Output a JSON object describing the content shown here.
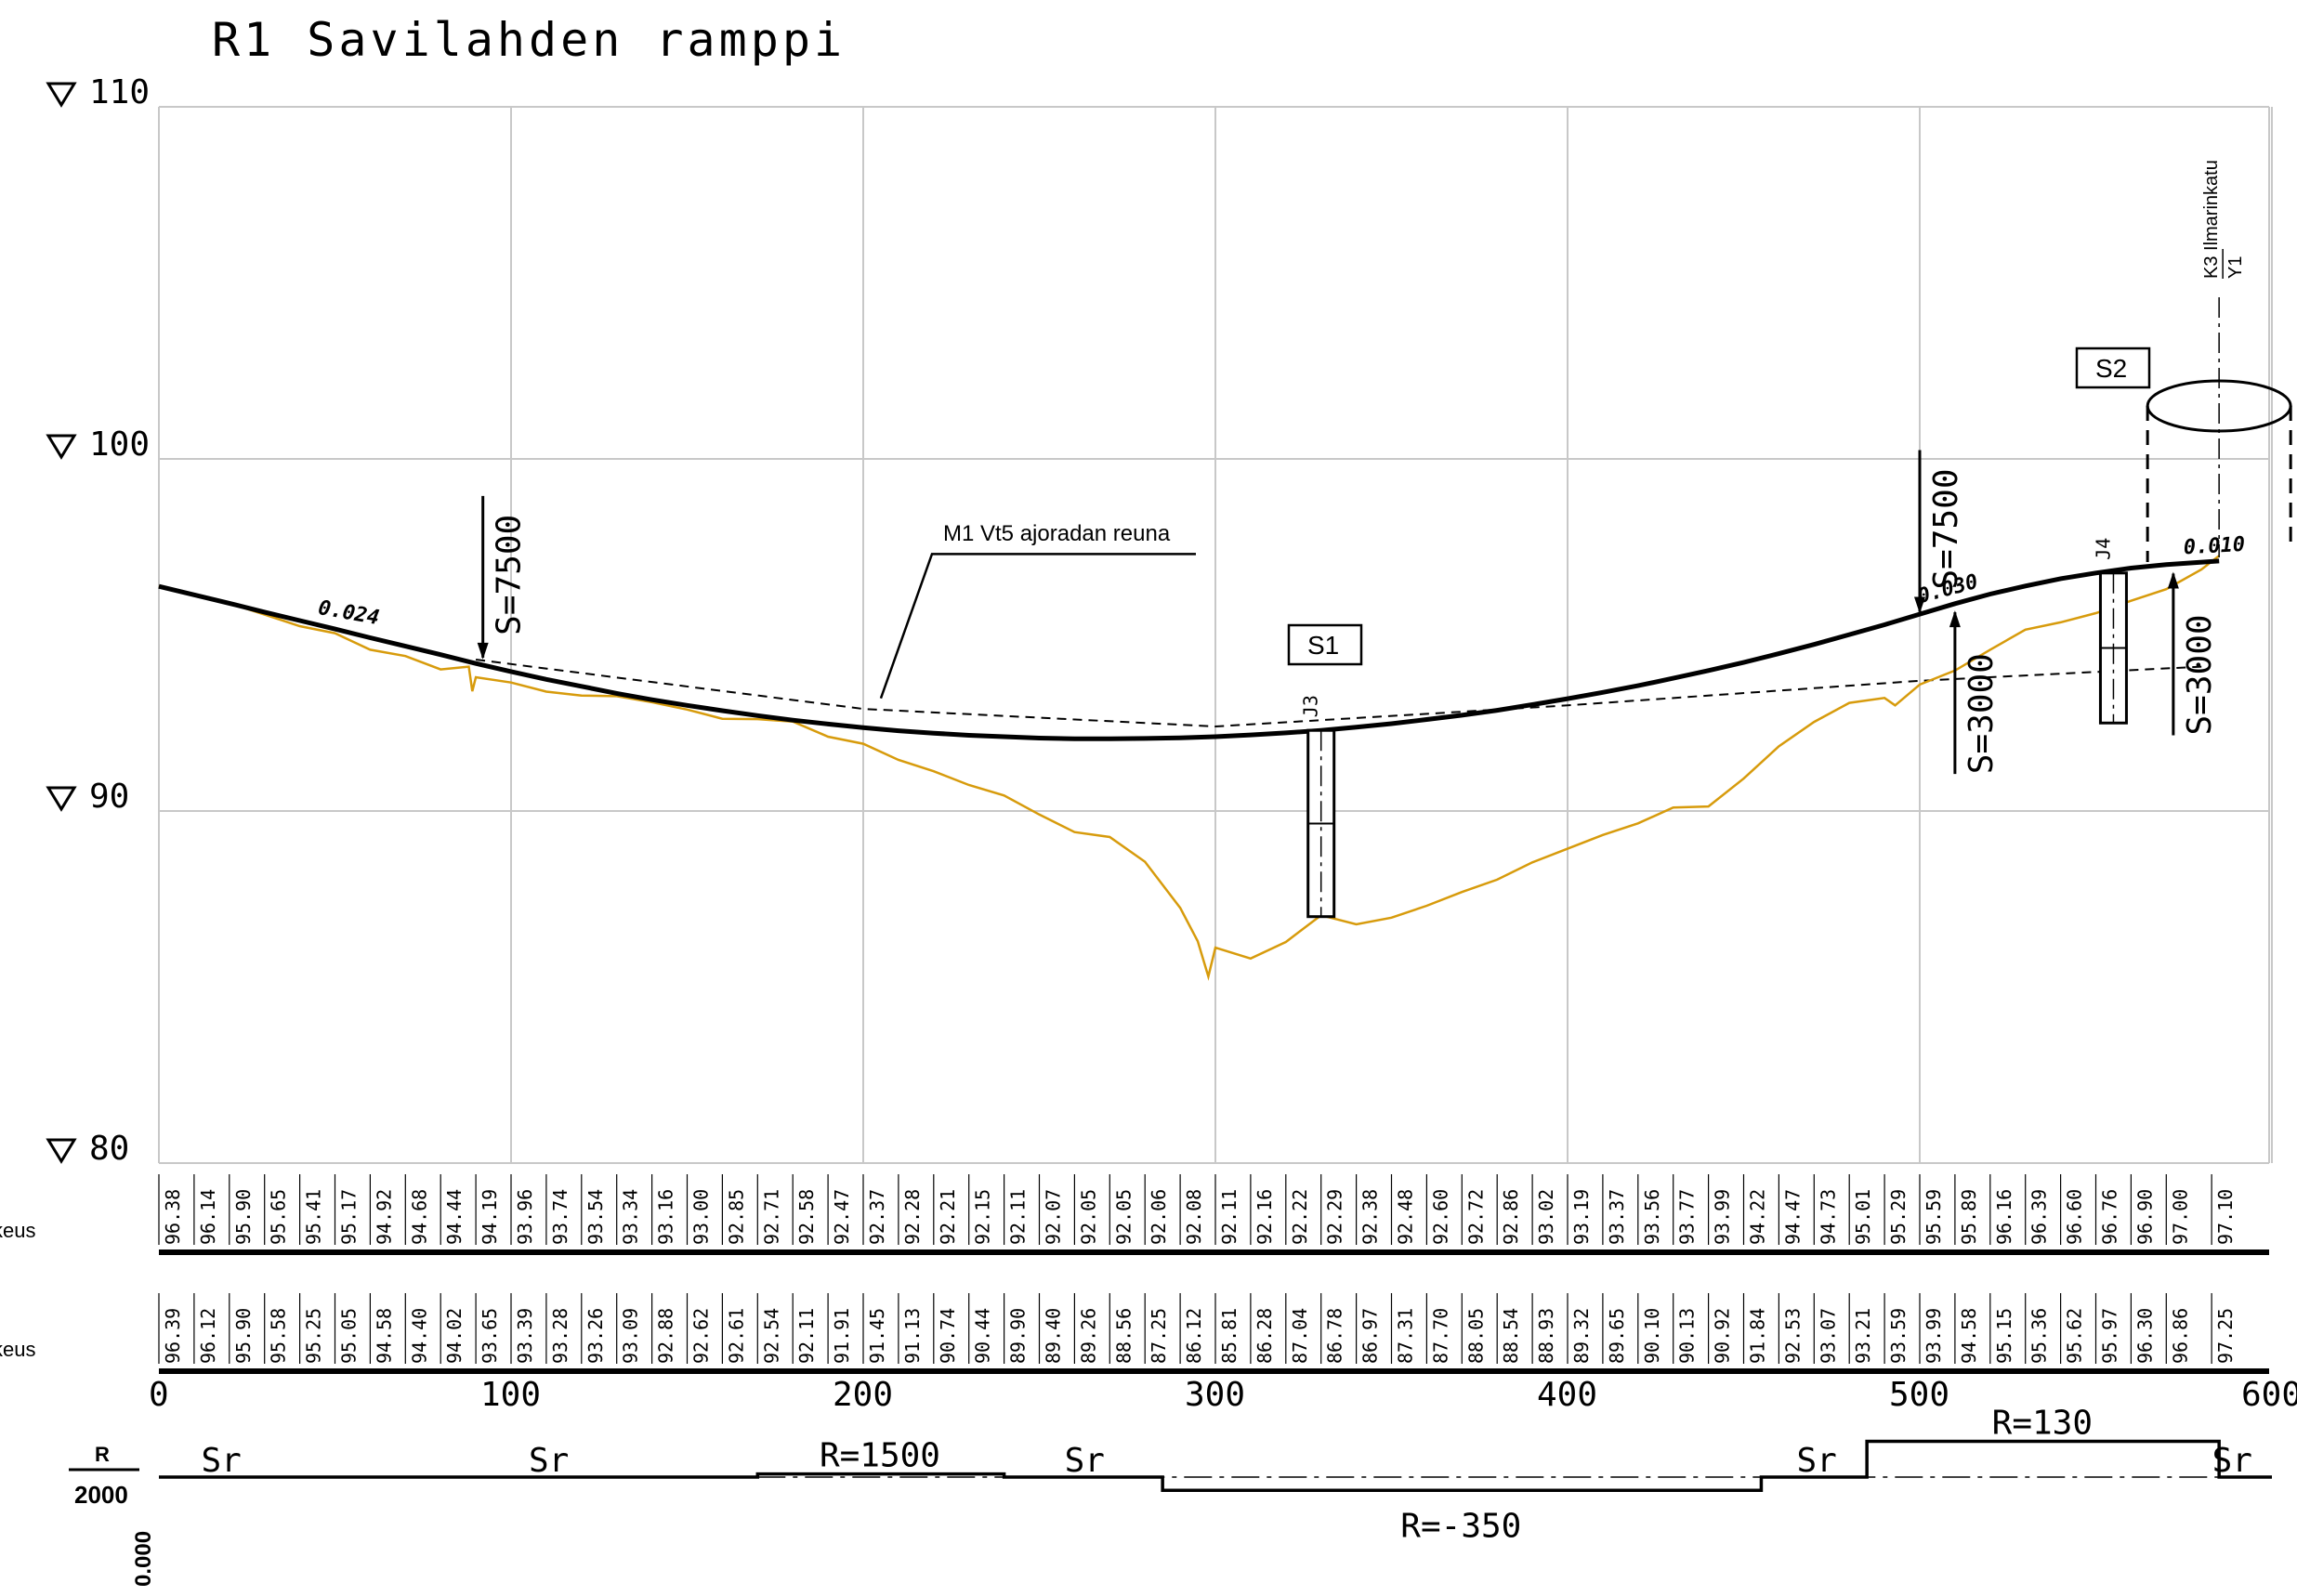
{
  "title": "R1 Savilahden ramppi",
  "elevation_axis": {
    "levels": [
      80,
      90,
      100,
      110
    ],
    "marker": "∇"
  },
  "station_axis": {
    "ticks": [
      "0",
      "100",
      "200",
      "300",
      "400",
      "500",
      "600"
    ],
    "min": 0,
    "max": 600
  },
  "design_line": {
    "points": [
      [
        0,
        96.38
      ],
      [
        10,
        96.14
      ],
      [
        20,
        95.9
      ],
      [
        30,
        95.65
      ],
      [
        40,
        95.41
      ],
      [
        50,
        95.17
      ],
      [
        60,
        94.92
      ],
      [
        70,
        94.68
      ],
      [
        80,
        94.44
      ],
      [
        90,
        94.19
      ],
      [
        100,
        93.96
      ],
      [
        110,
        93.74
      ],
      [
        120,
        93.54
      ],
      [
        130,
        93.34
      ],
      [
        140,
        93.16
      ],
      [
        150,
        93.0
      ],
      [
        160,
        92.85
      ],
      [
        170,
        92.71
      ],
      [
        180,
        92.58
      ],
      [
        190,
        92.47
      ],
      [
        200,
        92.37
      ],
      [
        210,
        92.28
      ],
      [
        220,
        92.21
      ],
      [
        230,
        92.15
      ],
      [
        240,
        92.11
      ],
      [
        250,
        92.07
      ],
      [
        260,
        92.05
      ],
      [
        270,
        92.05
      ],
      [
        280,
        92.06
      ],
      [
        290,
        92.08
      ],
      [
        300,
        92.11
      ],
      [
        310,
        92.16
      ],
      [
        320,
        92.22
      ],
      [
        330,
        92.29
      ],
      [
        340,
        92.38
      ],
      [
        350,
        92.48
      ],
      [
        360,
        92.6
      ],
      [
        370,
        92.72
      ],
      [
        380,
        92.86
      ],
      [
        390,
        93.02
      ],
      [
        400,
        93.19
      ],
      [
        410,
        93.37
      ],
      [
        420,
        93.56
      ],
      [
        430,
        93.77
      ],
      [
        440,
        93.99
      ],
      [
        450,
        94.22
      ],
      [
        460,
        94.47
      ],
      [
        470,
        94.73
      ],
      [
        480,
        95.01
      ],
      [
        490,
        95.29
      ],
      [
        500,
        95.59
      ],
      [
        510,
        95.89
      ],
      [
        520,
        96.16
      ],
      [
        530,
        96.39
      ],
      [
        540,
        96.6
      ],
      [
        550,
        96.76
      ],
      [
        560,
        96.9
      ],
      [
        570,
        97.0
      ],
      [
        585,
        97.1
      ]
    ],
    "labels": [
      "96.38",
      "96.14",
      "95.90",
      "95.65",
      "95.41",
      "95.17",
      "94.92",
      "94.68",
      "94.44",
      "94.19",
      "93.96",
      "93.74",
      "93.54",
      "93.34",
      "93.16",
      "93.00",
      "92.85",
      "92.71",
      "92.58",
      "92.47",
      "92.37",
      "92.28",
      "92.21",
      "92.15",
      "92.11",
      "92.07",
      "92.05",
      "92.05",
      "92.06",
      "92.08",
      "92.11",
      "92.16",
      "92.22",
      "92.29",
      "92.38",
      "92.48",
      "92.60",
      "92.72",
      "92.86",
      "93.02",
      "93.19",
      "93.37",
      "93.56",
      "93.77",
      "93.99",
      "94.22",
      "94.47",
      "94.73",
      "95.01",
      "95.29",
      "95.59",
      "95.89",
      "96.16",
      "96.39",
      "96.60",
      "96.76",
      "96.90",
      "97.00",
      "97.10"
    ],
    "row_label": "keus",
    "grades": [
      "0.024",
      "0.030",
      "0.010"
    ]
  },
  "ground_line": {
    "points": [
      [
        0,
        96.39
      ],
      [
        10,
        96.12
      ],
      [
        20,
        95.9
      ],
      [
        30,
        95.58
      ],
      [
        40,
        95.25
      ],
      [
        50,
        95.05
      ],
      [
        60,
        94.58
      ],
      [
        70,
        94.4
      ],
      [
        80,
        94.02
      ],
      [
        88,
        94.1
      ],
      [
        89,
        93.4
      ],
      [
        90,
        93.8
      ],
      [
        100,
        93.65
      ],
      [
        110,
        93.39
      ],
      [
        120,
        93.28
      ],
      [
        130,
        93.26
      ],
      [
        140,
        93.09
      ],
      [
        150,
        92.88
      ],
      [
        160,
        92.62
      ],
      [
        170,
        92.61
      ],
      [
        180,
        92.54
      ],
      [
        190,
        92.11
      ],
      [
        200,
        91.91
      ],
      [
        210,
        91.45
      ],
      [
        220,
        91.13
      ],
      [
        230,
        90.74
      ],
      [
        240,
        90.44
      ],
      [
        250,
        89.9
      ],
      [
        260,
        89.4
      ],
      [
        270,
        89.26
      ],
      [
        280,
        88.56
      ],
      [
        290,
        87.25
      ],
      [
        295,
        86.3
      ],
      [
        298,
        85.3
      ],
      [
        300,
        86.12
      ],
      [
        310,
        85.81
      ],
      [
        320,
        86.28
      ],
      [
        330,
        87.04
      ],
      [
        340,
        86.78
      ],
      [
        350,
        86.97
      ],
      [
        360,
        87.31
      ],
      [
        370,
        87.7
      ],
      [
        380,
        88.05
      ],
      [
        390,
        88.54
      ],
      [
        400,
        88.93
      ],
      [
        410,
        89.32
      ],
      [
        420,
        89.65
      ],
      [
        430,
        90.1
      ],
      [
        440,
        90.13
      ],
      [
        450,
        90.92
      ],
      [
        460,
        91.84
      ],
      [
        470,
        92.53
      ],
      [
        480,
        93.07
      ],
      [
        490,
        93.21
      ],
      [
        493,
        93.0
      ],
      [
        500,
        93.59
      ],
      [
        510,
        93.99
      ],
      [
        520,
        94.58
      ],
      [
        530,
        95.15
      ],
      [
        540,
        95.36
      ],
      [
        550,
        95.62
      ],
      [
        560,
        95.97
      ],
      [
        570,
        96.3
      ],
      [
        580,
        96.86
      ],
      [
        585,
        97.25
      ]
    ],
    "labels": [
      "96.39",
      "96.12",
      "95.90",
      "95.58",
      "95.25",
      "95.05",
      "94.58",
      "94.40",
      "94.02",
      "93.65",
      "93.39",
      "93.28",
      "93.26",
      "93.09",
      "92.88",
      "92.62",
      "92.61",
      "92.54",
      "92.11",
      "91.91",
      "91.45",
      "91.13",
      "90.74",
      "90.44",
      "89.90",
      "89.40",
      "89.26",
      "88.56",
      "87.25",
      "86.12",
      "85.81",
      "86.28",
      "87.04",
      "86.78",
      "86.97",
      "87.31",
      "87.70",
      "88.05",
      "88.54",
      "88.93",
      "89.32",
      "89.65",
      "90.10",
      "90.13",
      "90.92",
      "91.84",
      "92.53",
      "93.07",
      "93.21",
      "93.59",
      "93.99",
      "94.58",
      "95.15",
      "95.36",
      "95.62",
      "95.97",
      "96.30",
      "96.86",
      "97.25"
    ],
    "row_label": "keus"
  },
  "reference_line": {
    "label": "M1 Vt5 ajoradan reuna",
    "points": [
      [
        90,
        94.3
      ],
      [
        200,
        92.9
      ],
      [
        300,
        92.4
      ],
      [
        400,
        93.0
      ],
      [
        500,
        93.7
      ],
      [
        580,
        94.1
      ]
    ]
  },
  "vertical_curves": [
    {
      "label": "S=7500",
      "station": 92,
      "elevation": 94.2
    },
    {
      "label": "S=7500",
      "station": 500,
      "elevation": 95.5
    },
    {
      "label": "S=3000",
      "station": 510,
      "elevation": 95.8
    },
    {
      "label": "S=3000",
      "station": 572,
      "elevation": 96.9
    }
  ],
  "structures": [
    {
      "label": "S1",
      "pier": "J3",
      "station": 330,
      "top": 92.29,
      "bottom": 87.0
    },
    {
      "label": "S2",
      "pier": "J4",
      "station": 555,
      "top": 96.76,
      "bottom": 92.5
    }
  ],
  "intersection": {
    "text": "K3 Ilmarinkatu",
    "sub": "Y1",
    "station": 585
  },
  "curvature": {
    "scale_top": "R",
    "scale_bottom": "2000",
    "zero": "0.000",
    "segments": [
      {
        "label": "Sr",
        "from": 0,
        "to": 170,
        "value": 0
      },
      {
        "label": "R=1500",
        "from": 170,
        "to": 240,
        "value": 1.33
      },
      {
        "label": "Sr",
        "from": 240,
        "to": 285,
        "value": 0
      },
      {
        "label": "R=-350",
        "from": 285,
        "to": 455,
        "value": -5.71
      },
      {
        "label": "Sr",
        "from": 455,
        "to": 485,
        "value": 0
      },
      {
        "label": "R=130",
        "from": 485,
        "to": 585,
        "value": 15.38
      },
      {
        "label": "Sr",
        "from": 585,
        "to": 600,
        "value": 0
      }
    ]
  }
}
